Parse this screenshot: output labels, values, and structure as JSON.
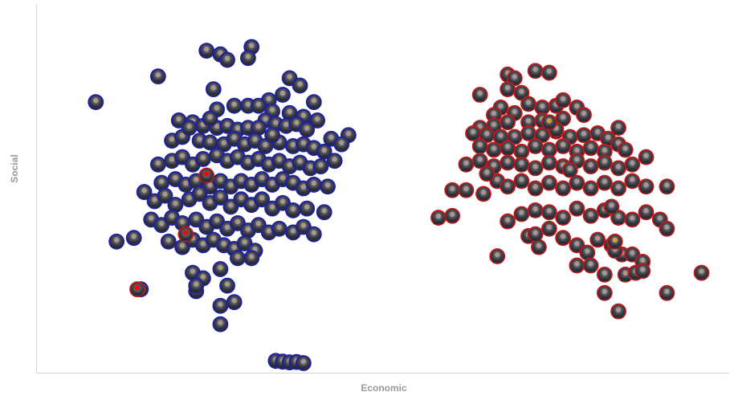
{
  "chart_data": {
    "type": "scatter",
    "xlabel": "Economic",
    "ylabel": "Social",
    "xlim": [
      0,
      100
    ],
    "ylim": [
      0,
      100
    ],
    "grid": false,
    "marker": "circular-portrait",
    "series": [
      {
        "color": "#1f1fa8",
        "points": [
          [
            8.5,
            73.5
          ],
          [
            17.5,
            80.5
          ],
          [
            24.5,
            87.5
          ],
          [
            26.5,
            86.5
          ],
          [
            31,
            88.5
          ],
          [
            27.5,
            85
          ],
          [
            30.5,
            85.5
          ],
          [
            36.5,
            80
          ],
          [
            25.5,
            77
          ],
          [
            35.5,
            75.5
          ],
          [
            33.5,
            74
          ],
          [
            28.5,
            72.5
          ],
          [
            26,
            71.5
          ],
          [
            30.5,
            72.5
          ],
          [
            32,
            72.5
          ],
          [
            34,
            71
          ],
          [
            33,
            68.5
          ],
          [
            36.5,
            70.5
          ],
          [
            38.5,
            69.5
          ],
          [
            40.5,
            68.5
          ],
          [
            20.5,
            68.5
          ],
          [
            22.5,
            68
          ],
          [
            24,
            67
          ],
          [
            26,
            66.5
          ],
          [
            27.5,
            67
          ],
          [
            29,
            66
          ],
          [
            30.5,
            66.5
          ],
          [
            32,
            66.5
          ],
          [
            34.5,
            67.5
          ],
          [
            36,
            67
          ],
          [
            37.5,
            67.5
          ],
          [
            39,
            66
          ],
          [
            42.5,
            63.5
          ],
          [
            19.5,
            63
          ],
          [
            21,
            64
          ],
          [
            23.5,
            63
          ],
          [
            25,
            62.5
          ],
          [
            27,
            62
          ],
          [
            28.5,
            63.5
          ],
          [
            30,
            62
          ],
          [
            31.5,
            63
          ],
          [
            33,
            61.5
          ],
          [
            35,
            62.5
          ],
          [
            37,
            61.5
          ],
          [
            38.5,
            62
          ],
          [
            40,
            61
          ],
          [
            41.5,
            60
          ],
          [
            17.5,
            56.5
          ],
          [
            19.5,
            57.5
          ],
          [
            21,
            58.5
          ],
          [
            22.5,
            56.5
          ],
          [
            24,
            58
          ],
          [
            26,
            59
          ],
          [
            27.5,
            57.5
          ],
          [
            29,
            58.5
          ],
          [
            30.5,
            57
          ],
          [
            32,
            58
          ],
          [
            33.5,
            56.5
          ],
          [
            35,
            57.5
          ],
          [
            36.5,
            56
          ],
          [
            38,
            57
          ],
          [
            39.5,
            55.5
          ],
          [
            41,
            56
          ],
          [
            43,
            57.5
          ],
          [
            18,
            51.5
          ],
          [
            20,
            52.5
          ],
          [
            21.5,
            51
          ],
          [
            23,
            52
          ],
          [
            25,
            50.5
          ],
          [
            26.5,
            52
          ],
          [
            28,
            50.5
          ],
          [
            29.5,
            52
          ],
          [
            31,
            51
          ],
          [
            32.5,
            52.5
          ],
          [
            34,
            51
          ],
          [
            35.5,
            52.5
          ],
          [
            37,
            51.5
          ],
          [
            38.5,
            50
          ],
          [
            40,
            51
          ],
          [
            42,
            50.5
          ],
          [
            15.5,
            49
          ],
          [
            17,
            46.5
          ],
          [
            18.5,
            48
          ],
          [
            20,
            45.5
          ],
          [
            22,
            47
          ],
          [
            23.5,
            48.5
          ],
          [
            25,
            46
          ],
          [
            26.5,
            47.5
          ],
          [
            28,
            45
          ],
          [
            29.5,
            47
          ],
          [
            31,
            45.5
          ],
          [
            32.5,
            47
          ],
          [
            34,
            44.5
          ],
          [
            35.5,
            46
          ],
          [
            37,
            44
          ],
          [
            39,
            44.5
          ],
          [
            41.5,
            43.5
          ],
          [
            16.5,
            41.5
          ],
          [
            18,
            40
          ],
          [
            19.5,
            42
          ],
          [
            21,
            40.5
          ],
          [
            23,
            41.5
          ],
          [
            24.5,
            39.5
          ],
          [
            26,
            41
          ],
          [
            27.5,
            39
          ],
          [
            29,
            40.5
          ],
          [
            30.5,
            38.5
          ],
          [
            32,
            40
          ],
          [
            33.5,
            38
          ],
          [
            35,
            39
          ],
          [
            37,
            38
          ],
          [
            38.5,
            39.5
          ],
          [
            40,
            37.5
          ],
          [
            14,
            36.5
          ],
          [
            19,
            35.5
          ],
          [
            21,
            34
          ],
          [
            22.5,
            36
          ],
          [
            24,
            34.5
          ],
          [
            25.5,
            36
          ],
          [
            27,
            34.5
          ],
          [
            28.5,
            33.5
          ],
          [
            30,
            35
          ],
          [
            31.5,
            33
          ],
          [
            29,
            31
          ],
          [
            31,
            31
          ],
          [
            22.5,
            27
          ],
          [
            24,
            25.5
          ],
          [
            26.5,
            28
          ],
          [
            27.5,
            23.5
          ],
          [
            28.5,
            19
          ],
          [
            15,
            22.5
          ],
          [
            26.5,
            18
          ],
          [
            23,
            22
          ],
          [
            26.5,
            13
          ],
          [
            34.5,
            3
          ],
          [
            35.5,
            2.8
          ],
          [
            36.5,
            2.6
          ],
          [
            37.5,
            2.7
          ],
          [
            38.5,
            2.4
          ],
          [
            11.5,
            35.5
          ],
          [
            23,
            23.5
          ],
          [
            45,
            64.5
          ],
          [
            44,
            62
          ],
          [
            38,
            78
          ],
          [
            40,
            73.5
          ],
          [
            25,
            69
          ],
          [
            22,
            66.5
          ],
          [
            34,
            64.5
          ]
        ]
      },
      {
        "color": "#c21a1a",
        "points": [
          [
            64,
            75.5
          ],
          [
            68,
            81
          ],
          [
            69,
            80
          ],
          [
            72,
            82
          ],
          [
            74,
            81.5
          ],
          [
            70,
            76
          ],
          [
            71,
            73
          ],
          [
            67,
            72
          ],
          [
            66,
            70
          ],
          [
            69,
            70.5
          ],
          [
            73,
            72
          ],
          [
            75,
            72.5
          ],
          [
            76,
            74
          ],
          [
            78,
            72
          ],
          [
            79,
            70
          ],
          [
            76,
            69
          ],
          [
            73,
            68.5
          ],
          [
            71,
            68
          ],
          [
            68,
            68
          ],
          [
            66,
            67
          ],
          [
            64,
            66.5
          ],
          [
            63,
            65
          ],
          [
            65,
            64.5
          ],
          [
            67,
            64
          ],
          [
            69,
            64
          ],
          [
            71,
            65
          ],
          [
            73,
            64.5
          ],
          [
            75,
            65.5
          ],
          [
            77,
            64
          ],
          [
            79,
            64.5
          ],
          [
            81,
            65
          ],
          [
            82.5,
            63.5
          ],
          [
            84,
            66.5
          ],
          [
            64,
            61.5
          ],
          [
            66,
            60.5
          ],
          [
            68,
            61
          ],
          [
            70,
            60
          ],
          [
            72,
            61.5
          ],
          [
            74,
            60.5
          ],
          [
            76,
            61.5
          ],
          [
            78,
            60
          ],
          [
            80,
            61
          ],
          [
            82,
            60
          ],
          [
            84,
            62
          ],
          [
            85,
            60.5
          ],
          [
            62,
            56.5
          ],
          [
            64,
            57.5
          ],
          [
            66,
            56
          ],
          [
            68,
            57
          ],
          [
            70,
            56.5
          ],
          [
            72,
            55.5
          ],
          [
            74,
            57
          ],
          [
            76,
            56
          ],
          [
            78,
            57.5
          ],
          [
            80,
            56
          ],
          [
            82,
            57
          ],
          [
            84,
            55.5
          ],
          [
            86,
            56.5
          ],
          [
            88,
            58.5
          ],
          [
            60,
            49.5
          ],
          [
            62,
            49.5
          ],
          [
            64.5,
            48.5
          ],
          [
            66.5,
            52
          ],
          [
            68,
            50.5
          ],
          [
            70,
            52
          ],
          [
            72,
            50
          ],
          [
            74,
            51.5
          ],
          [
            76,
            50
          ],
          [
            78,
            51.5
          ],
          [
            80,
            50
          ],
          [
            82,
            51.5
          ],
          [
            84,
            50
          ],
          [
            86,
            52
          ],
          [
            88,
            50.5
          ],
          [
            91,
            50.5
          ],
          [
            58,
            42
          ],
          [
            60,
            42.5
          ],
          [
            68,
            41
          ],
          [
            70,
            43
          ],
          [
            72,
            44
          ],
          [
            74,
            43.5
          ],
          [
            76,
            42
          ],
          [
            78,
            44.5
          ],
          [
            80,
            42.5
          ],
          [
            82,
            44
          ],
          [
            84,
            42
          ],
          [
            86,
            41.5
          ],
          [
            88,
            43.5
          ],
          [
            90,
            41.5
          ],
          [
            91,
            39
          ],
          [
            71,
            37
          ],
          [
            72.5,
            34
          ],
          [
            76,
            36.5
          ],
          [
            78,
            34.5
          ],
          [
            79.5,
            32.5
          ],
          [
            81,
            36
          ],
          [
            83,
            34.5
          ],
          [
            84.5,
            32
          ],
          [
            86,
            32
          ],
          [
            87.5,
            30
          ],
          [
            66.5,
            31.5
          ],
          [
            78,
            29
          ],
          [
            80,
            29
          ],
          [
            82,
            26.5
          ],
          [
            83.5,
            33
          ],
          [
            85,
            26.5
          ],
          [
            86.5,
            27
          ],
          [
            87.5,
            27.5
          ],
          [
            96,
            27
          ],
          [
            82,
            21.5
          ],
          [
            91,
            21.5
          ],
          [
            84,
            16.5
          ],
          [
            72,
            37.5
          ],
          [
            74,
            39
          ],
          [
            68,
            77
          ],
          [
            75,
            66
          ],
          [
            77,
            55
          ],
          [
            83,
            45
          ],
          [
            65,
            54
          ]
        ]
      }
    ],
    "highlight_points": [
      {
        "x": 14.5,
        "y": 22.5,
        "color": "#ff0000"
      },
      {
        "x": 21.5,
        "y": 37.5,
        "color": "#ff0000"
      },
      {
        "x": 24.5,
        "y": 53.5,
        "color": "#ff0000"
      },
      {
        "x": 83.5,
        "y": 35.5,
        "color": "#e0a030"
      },
      {
        "x": 74,
        "y": 68,
        "color": "#e0a030"
      }
    ]
  }
}
